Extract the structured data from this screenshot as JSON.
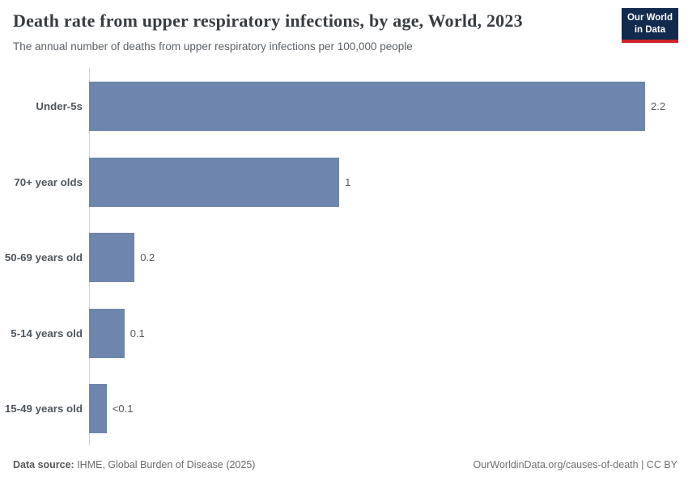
{
  "header": {
    "title": "Death rate from upper respiratory infections, by age, World, 2023",
    "subtitle": "The annual number of deaths from upper respiratory infections per 100,000 people",
    "logo": {
      "line1": "Our World",
      "line2": "in Data"
    }
  },
  "chart_data": {
    "type": "bar",
    "orientation": "horizontal",
    "title": "Death rate from upper respiratory infections, by age, World, 2023",
    "subtitle": "The annual number of deaths from upper respiratory infections per 100,000 people",
    "categories": [
      "Under-5s",
      "70+ year olds",
      "50-69 years old",
      "5-14 years old",
      "15-49 years old"
    ],
    "values": [
      2.2,
      0.99,
      0.18,
      0.14,
      0.07
    ],
    "value_labels": [
      "2.2",
      "1",
      "0.2",
      "0.1",
      "<0.1"
    ],
    "xlabel": "",
    "ylabel": "",
    "xlim": [
      0,
      2.2
    ],
    "grid": false,
    "legend": "none",
    "bar_color": "#6e86ad"
  },
  "footer": {
    "source_label": "Data source:",
    "source_text": " IHME, Global Burden of Disease (2025)",
    "attribution_url": "OurWorldinData.org/causes-of-death",
    "attribution_license": " | CC BY"
  },
  "colors": {
    "bar": "#6e86ad",
    "logo_navy": "#122a4d",
    "logo_red": "#cd2328",
    "title_text": "#383d42",
    "subtitle_text": "#5b6166",
    "label_text": "#4f565c",
    "value_text": "#54585c",
    "axis_line": "#d2d2d2",
    "footer_text": "#6b6b6d"
  }
}
